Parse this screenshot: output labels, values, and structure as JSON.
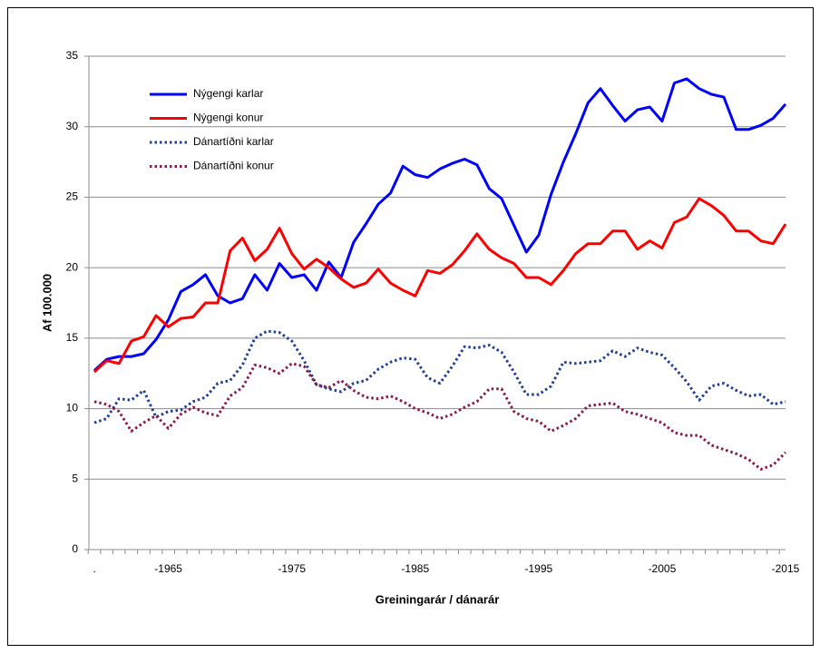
{
  "chart_data": {
    "type": "line",
    "y_label": "Af 100.000",
    "x_label": "Greiningarár / dánarár",
    "categories": [
      ".",
      null,
      null,
      null,
      null,
      null,
      "-1965",
      null,
      null,
      null,
      null,
      null,
      null,
      null,
      null,
      null,
      "-1975",
      null,
      null,
      null,
      null,
      null,
      null,
      null,
      null,
      null,
      "-1985",
      null,
      null,
      null,
      null,
      null,
      null,
      null,
      null,
      null,
      "-1995",
      null,
      null,
      null,
      null,
      null,
      null,
      null,
      null,
      null,
      "-2005",
      null,
      null,
      null,
      null,
      null,
      null,
      null,
      null,
      null,
      "-2015"
    ],
    "series": [
      {
        "name": "Nýgengi karlar",
        "color": "#0000ff",
        "dash": "solid",
        "values": [
          12.7,
          13.5,
          13.7,
          13.7,
          13.9,
          14.9,
          16.3,
          18.3,
          18.8,
          19.5,
          18.0,
          17.5,
          17.8,
          19.5,
          18.4,
          20.3,
          19.3,
          19.5,
          18.4,
          20.4,
          19.3,
          21.8,
          23.1,
          24.5,
          25.3,
          27.2,
          26.6,
          26.4,
          27.0,
          27.4,
          27.7,
          27.3,
          25.6,
          24.9,
          23.0,
          21.1,
          22.3,
          25.2,
          27.5,
          29.5,
          31.7,
          32.7,
          31.5,
          30.4,
          31.2,
          31.4,
          30.4,
          33.1,
          33.4,
          32.7,
          32.3,
          32.1,
          29.8,
          29.8,
          30.1,
          30.6,
          31.6
        ]
      },
      {
        "name": "Nýgengi konur",
        "color": "#ff0000",
        "dash": "solid",
        "values": [
          12.6,
          13.4,
          13.2,
          14.8,
          15.1,
          16.6,
          15.8,
          16.4,
          16.5,
          17.5,
          17.5,
          21.2,
          22.1,
          20.5,
          21.3,
          22.8,
          21.0,
          19.9,
          20.6,
          20.0,
          19.2,
          18.6,
          18.9,
          19.9,
          18.9,
          18.4,
          18.0,
          19.8,
          19.6,
          20.2,
          21.2,
          22.4,
          21.3,
          20.7,
          20.3,
          19.3,
          19.3,
          18.8,
          19.8,
          21.0,
          21.7,
          21.7,
          22.6,
          22.6,
          21.3,
          21.9,
          21.4,
          23.2,
          23.6,
          24.9,
          24.4,
          23.7,
          22.6,
          22.6,
          21.9,
          21.7,
          23.1
        ]
      },
      {
        "name": "Dánartíðni karlar",
        "color": "#1f3f99",
        "dash": "dotted",
        "values": [
          9.0,
          9.3,
          10.7,
          10.6,
          11.3,
          9.4,
          9.8,
          9.9,
          10.5,
          10.8,
          11.8,
          12.0,
          13.1,
          15.0,
          15.5,
          15.4,
          14.8,
          13.4,
          11.7,
          11.4,
          11.2,
          11.8,
          12.0,
          12.8,
          13.3,
          13.6,
          13.5,
          12.2,
          11.8,
          13.0,
          14.4,
          14.3,
          14.5,
          14.0,
          12.6,
          11.0,
          11.0,
          11.6,
          13.3,
          13.2,
          13.3,
          13.4,
          14.1,
          13.7,
          14.3,
          14.0,
          13.8,
          12.9,
          11.9,
          10.6,
          11.6,
          11.8,
          11.3,
          10.9,
          11.0,
          10.3,
          10.5
        ]
      },
      {
        "name": "Dánartíðni konur",
        "color": "#8b1a4a",
        "dash": "dotted",
        "values": [
          10.5,
          10.3,
          9.8,
          8.4,
          9.0,
          9.5,
          8.6,
          9.6,
          10.1,
          9.7,
          9.5,
          10.9,
          11.5,
          13.1,
          12.9,
          12.5,
          13.2,
          13.0,
          11.7,
          11.5,
          12.0,
          11.3,
          10.8,
          10.7,
          10.9,
          10.5,
          10.0,
          9.7,
          9.3,
          9.6,
          10.1,
          10.5,
          11.4,
          11.4,
          9.8,
          9.3,
          9.1,
          8.4,
          8.8,
          9.3,
          10.2,
          10.3,
          10.4,
          9.8,
          9.6,
          9.3,
          9.0,
          8.3,
          8.1,
          8.1,
          7.4,
          7.1,
          6.8,
          6.4,
          5.7,
          6.0,
          6.9
        ]
      }
    ],
    "ylim": [
      0,
      35
    ],
    "yticks": [
      0,
      5,
      10,
      15,
      20,
      25,
      30,
      35
    ],
    "grid": true,
    "legend": "top-left"
  }
}
